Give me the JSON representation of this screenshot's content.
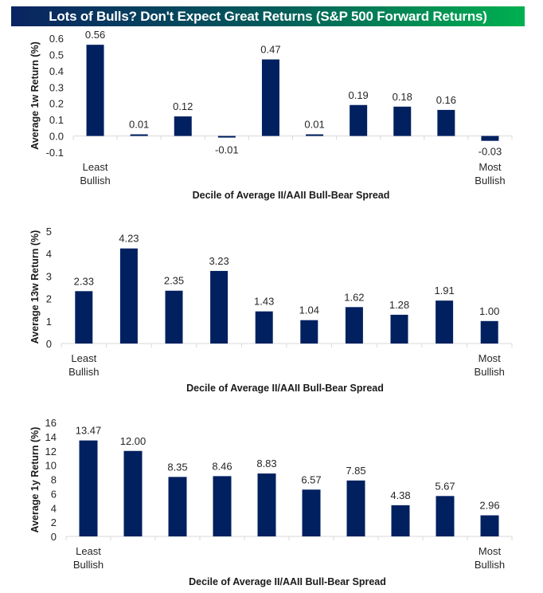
{
  "title": "Lots of Bulls? Don't Expect Great Returns (S&P 500 Forward Returns)",
  "colors": {
    "bar": "#002060",
    "title_gradient_start": "#0a2462",
    "title_gradient_end": "#00b050",
    "axis": "#d9d9d9"
  },
  "chart_data": [
    {
      "type": "bar",
      "title": "",
      "xlabel": "Decile of Average II/AAII Bull-Bear Spread",
      "ylabel": "Average 1w Return (%)",
      "categories": [
        "1",
        "2",
        "3",
        "4",
        "5",
        "6",
        "7",
        "8",
        "9",
        "10"
      ],
      "category_labels": {
        "first": [
          "Least",
          "Bullish"
        ],
        "last": [
          "Most",
          "Bullish"
        ]
      },
      "values": [
        0.56,
        0.01,
        0.12,
        -0.01,
        0.47,
        0.01,
        0.19,
        0.18,
        0.16,
        -0.03
      ],
      "data_labels": [
        "0.56",
        "0.01",
        "0.12",
        "-0.01",
        "0.47",
        "0.01",
        "0.19",
        "0.18",
        "0.16",
        "-0.03"
      ],
      "ylim": [
        -0.1,
        0.6
      ],
      "yticks": [
        -0.1,
        0.0,
        0.1,
        0.2,
        0.3,
        0.4,
        0.5,
        0.6
      ],
      "ytick_labels": [
        "-0.1",
        "0.0",
        "0.1",
        "0.2",
        "0.3",
        "0.4",
        "0.5",
        "0.6"
      ],
      "grid": false,
      "legend": "none"
    },
    {
      "type": "bar",
      "title": "",
      "xlabel": "Decile of Average II/AAII Bull-Bear Spread",
      "ylabel": "Average 13w Return (%)",
      "categories": [
        "1",
        "2",
        "3",
        "4",
        "5",
        "6",
        "7",
        "8",
        "9",
        "10"
      ],
      "category_labels": {
        "first": [
          "Least",
          "Bullish"
        ],
        "last": [
          "Most",
          "Bullish"
        ]
      },
      "values": [
        2.33,
        4.23,
        2.35,
        3.23,
        1.43,
        1.04,
        1.62,
        1.28,
        1.91,
        1.0
      ],
      "data_labels": [
        "2.33",
        "4.23",
        "2.35",
        "3.23",
        "1.43",
        "1.04",
        "1.62",
        "1.28",
        "1.91",
        "1.00"
      ],
      "ylim": [
        0,
        5
      ],
      "yticks": [
        0,
        1,
        2,
        3,
        4,
        5
      ],
      "ytick_labels": [
        "0",
        "1",
        "2",
        "3",
        "4",
        "5"
      ],
      "grid": false,
      "legend": "none"
    },
    {
      "type": "bar",
      "title": "",
      "xlabel": "Decile of Average II/AAII Bull-Bear Spread",
      "ylabel": "Average 1y Return (%)",
      "categories": [
        "1",
        "2",
        "3",
        "4",
        "5",
        "6",
        "7",
        "8",
        "9",
        "10"
      ],
      "category_labels": {
        "first": [
          "Least",
          "Bullish"
        ],
        "last": [
          "Most",
          "Bullish"
        ]
      },
      "values": [
        13.47,
        12.0,
        8.35,
        8.46,
        8.83,
        6.57,
        7.85,
        4.38,
        5.67,
        2.96
      ],
      "data_labels": [
        "13.47",
        "12.00",
        "8.35",
        "8.46",
        "8.83",
        "6.57",
        "7.85",
        "4.38",
        "5.67",
        "2.96"
      ],
      "ylim": [
        0,
        16
      ],
      "yticks": [
        0,
        2,
        4,
        6,
        8,
        10,
        12,
        14,
        16
      ],
      "ytick_labels": [
        "0",
        "2",
        "4",
        "6",
        "8",
        "10",
        "12",
        "14",
        "16"
      ],
      "grid": false,
      "legend": "none"
    }
  ]
}
